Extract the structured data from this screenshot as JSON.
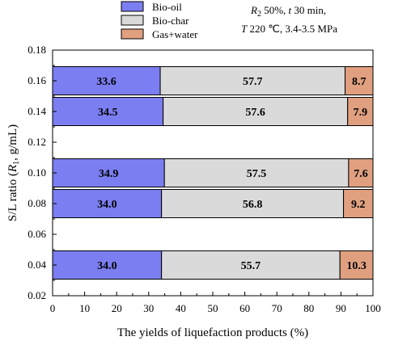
{
  "chart_data": {
    "type": "bar",
    "orientation": "horizontal",
    "stacked": true,
    "xlabel": "The yields of liquefaction products (%)",
    "ylabel_parts": [
      "S/L ratio (",
      "R",
      "1",
      ", g/mL)"
    ],
    "xlim": [
      0,
      100
    ],
    "ylim": [
      0.02,
      0.18
    ],
    "x_ticks": [
      0,
      10,
      20,
      30,
      40,
      50,
      60,
      70,
      80,
      90,
      100
    ],
    "y_ticks": [
      "0.02",
      "0.04",
      "0.06",
      "0.08",
      "0.10",
      "0.12",
      "0.14",
      "0.16",
      "0.18"
    ],
    "categories": [
      0.16,
      0.14,
      0.1,
      0.08,
      0.04
    ],
    "series": [
      {
        "name": "Bio-oil",
        "color": "#7b7ef0",
        "values": [
          33.6,
          34.5,
          34.9,
          34.0,
          34.0
        ]
      },
      {
        "name": "Bio-char",
        "color": "#dadada",
        "values": [
          57.7,
          57.6,
          57.5,
          56.8,
          55.7
        ]
      },
      {
        "name": "Gas+water",
        "color": "#e0a080",
        "values": [
          8.7,
          7.9,
          7.6,
          9.2,
          10.3
        ]
      }
    ],
    "value_labels": [
      [
        "33.6",
        "57.7",
        "8.7"
      ],
      [
        "34.5",
        "57.6",
        "7.9"
      ],
      [
        "34.9",
        "57.5",
        "7.6"
      ],
      [
        "34.0",
        "56.8",
        "9.2"
      ],
      [
        "34.0",
        "55.7",
        "10.3"
      ]
    ],
    "conditions": {
      "line1": {
        "var": "R",
        "sub": "2",
        "rest": " 50%, ",
        "var2": "t",
        "rest2": " 30 min,"
      },
      "line2": {
        "var": "T",
        "rest": " 220 ℃, 3.4-3.5 MPa"
      }
    },
    "grid": false,
    "legend_position": "top-left"
  }
}
